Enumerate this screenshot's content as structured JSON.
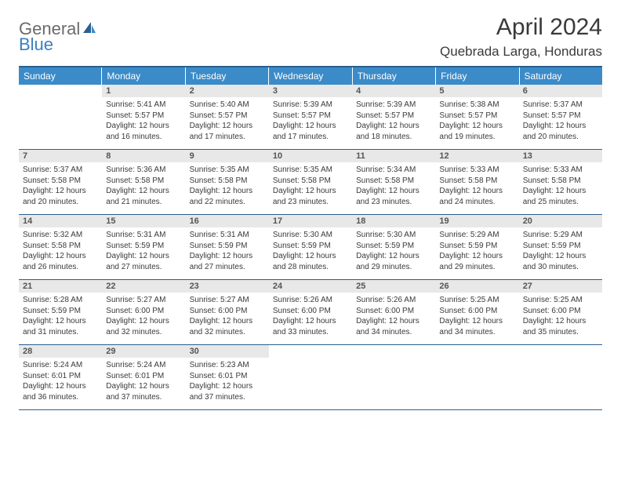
{
  "logo": {
    "part1": "General",
    "part2": "Blue"
  },
  "title": "April 2024",
  "location": "Quebrada Larga, Honduras",
  "colors": {
    "header_bg": "#3b8bc9",
    "header_text": "#ffffff",
    "border": "#2c5f8d",
    "daynum_bg": "#e8e8e8",
    "daynum_text": "#555555",
    "body_text": "#3a3a3a",
    "logo_gray": "#6b6b6b",
    "logo_blue": "#3b7fbf"
  },
  "weekdays": [
    "Sunday",
    "Monday",
    "Tuesday",
    "Wednesday",
    "Thursday",
    "Friday",
    "Saturday"
  ],
  "weeks": [
    [
      {
        "empty": true
      },
      {
        "n": "1",
        "sr": "Sunrise: 5:41 AM",
        "ss": "Sunset: 5:57 PM",
        "dl1": "Daylight: 12 hours",
        "dl2": "and 16 minutes."
      },
      {
        "n": "2",
        "sr": "Sunrise: 5:40 AM",
        "ss": "Sunset: 5:57 PM",
        "dl1": "Daylight: 12 hours",
        "dl2": "and 17 minutes."
      },
      {
        "n": "3",
        "sr": "Sunrise: 5:39 AM",
        "ss": "Sunset: 5:57 PM",
        "dl1": "Daylight: 12 hours",
        "dl2": "and 17 minutes."
      },
      {
        "n": "4",
        "sr": "Sunrise: 5:39 AM",
        "ss": "Sunset: 5:57 PM",
        "dl1": "Daylight: 12 hours",
        "dl2": "and 18 minutes."
      },
      {
        "n": "5",
        "sr": "Sunrise: 5:38 AM",
        "ss": "Sunset: 5:57 PM",
        "dl1": "Daylight: 12 hours",
        "dl2": "and 19 minutes."
      },
      {
        "n": "6",
        "sr": "Sunrise: 5:37 AM",
        "ss": "Sunset: 5:57 PM",
        "dl1": "Daylight: 12 hours",
        "dl2": "and 20 minutes."
      }
    ],
    [
      {
        "n": "7",
        "sr": "Sunrise: 5:37 AM",
        "ss": "Sunset: 5:58 PM",
        "dl1": "Daylight: 12 hours",
        "dl2": "and 20 minutes."
      },
      {
        "n": "8",
        "sr": "Sunrise: 5:36 AM",
        "ss": "Sunset: 5:58 PM",
        "dl1": "Daylight: 12 hours",
        "dl2": "and 21 minutes."
      },
      {
        "n": "9",
        "sr": "Sunrise: 5:35 AM",
        "ss": "Sunset: 5:58 PM",
        "dl1": "Daylight: 12 hours",
        "dl2": "and 22 minutes."
      },
      {
        "n": "10",
        "sr": "Sunrise: 5:35 AM",
        "ss": "Sunset: 5:58 PM",
        "dl1": "Daylight: 12 hours",
        "dl2": "and 23 minutes."
      },
      {
        "n": "11",
        "sr": "Sunrise: 5:34 AM",
        "ss": "Sunset: 5:58 PM",
        "dl1": "Daylight: 12 hours",
        "dl2": "and 23 minutes."
      },
      {
        "n": "12",
        "sr": "Sunrise: 5:33 AM",
        "ss": "Sunset: 5:58 PM",
        "dl1": "Daylight: 12 hours",
        "dl2": "and 24 minutes."
      },
      {
        "n": "13",
        "sr": "Sunrise: 5:33 AM",
        "ss": "Sunset: 5:58 PM",
        "dl1": "Daylight: 12 hours",
        "dl2": "and 25 minutes."
      }
    ],
    [
      {
        "n": "14",
        "sr": "Sunrise: 5:32 AM",
        "ss": "Sunset: 5:58 PM",
        "dl1": "Daylight: 12 hours",
        "dl2": "and 26 minutes."
      },
      {
        "n": "15",
        "sr": "Sunrise: 5:31 AM",
        "ss": "Sunset: 5:59 PM",
        "dl1": "Daylight: 12 hours",
        "dl2": "and 27 minutes."
      },
      {
        "n": "16",
        "sr": "Sunrise: 5:31 AM",
        "ss": "Sunset: 5:59 PM",
        "dl1": "Daylight: 12 hours",
        "dl2": "and 27 minutes."
      },
      {
        "n": "17",
        "sr": "Sunrise: 5:30 AM",
        "ss": "Sunset: 5:59 PM",
        "dl1": "Daylight: 12 hours",
        "dl2": "and 28 minutes."
      },
      {
        "n": "18",
        "sr": "Sunrise: 5:30 AM",
        "ss": "Sunset: 5:59 PM",
        "dl1": "Daylight: 12 hours",
        "dl2": "and 29 minutes."
      },
      {
        "n": "19",
        "sr": "Sunrise: 5:29 AM",
        "ss": "Sunset: 5:59 PM",
        "dl1": "Daylight: 12 hours",
        "dl2": "and 29 minutes."
      },
      {
        "n": "20",
        "sr": "Sunrise: 5:29 AM",
        "ss": "Sunset: 5:59 PM",
        "dl1": "Daylight: 12 hours",
        "dl2": "and 30 minutes."
      }
    ],
    [
      {
        "n": "21",
        "sr": "Sunrise: 5:28 AM",
        "ss": "Sunset: 5:59 PM",
        "dl1": "Daylight: 12 hours",
        "dl2": "and 31 minutes."
      },
      {
        "n": "22",
        "sr": "Sunrise: 5:27 AM",
        "ss": "Sunset: 6:00 PM",
        "dl1": "Daylight: 12 hours",
        "dl2": "and 32 minutes."
      },
      {
        "n": "23",
        "sr": "Sunrise: 5:27 AM",
        "ss": "Sunset: 6:00 PM",
        "dl1": "Daylight: 12 hours",
        "dl2": "and 32 minutes."
      },
      {
        "n": "24",
        "sr": "Sunrise: 5:26 AM",
        "ss": "Sunset: 6:00 PM",
        "dl1": "Daylight: 12 hours",
        "dl2": "and 33 minutes."
      },
      {
        "n": "25",
        "sr": "Sunrise: 5:26 AM",
        "ss": "Sunset: 6:00 PM",
        "dl1": "Daylight: 12 hours",
        "dl2": "and 34 minutes."
      },
      {
        "n": "26",
        "sr": "Sunrise: 5:25 AM",
        "ss": "Sunset: 6:00 PM",
        "dl1": "Daylight: 12 hours",
        "dl2": "and 34 minutes."
      },
      {
        "n": "27",
        "sr": "Sunrise: 5:25 AM",
        "ss": "Sunset: 6:00 PM",
        "dl1": "Daylight: 12 hours",
        "dl2": "and 35 minutes."
      }
    ],
    [
      {
        "n": "28",
        "sr": "Sunrise: 5:24 AM",
        "ss": "Sunset: 6:01 PM",
        "dl1": "Daylight: 12 hours",
        "dl2": "and 36 minutes."
      },
      {
        "n": "29",
        "sr": "Sunrise: 5:24 AM",
        "ss": "Sunset: 6:01 PM",
        "dl1": "Daylight: 12 hours",
        "dl2": "and 37 minutes."
      },
      {
        "n": "30",
        "sr": "Sunrise: 5:23 AM",
        "ss": "Sunset: 6:01 PM",
        "dl1": "Daylight: 12 hours",
        "dl2": "and 37 minutes."
      },
      {
        "empty": true
      },
      {
        "empty": true
      },
      {
        "empty": true
      },
      {
        "empty": true
      }
    ]
  ]
}
